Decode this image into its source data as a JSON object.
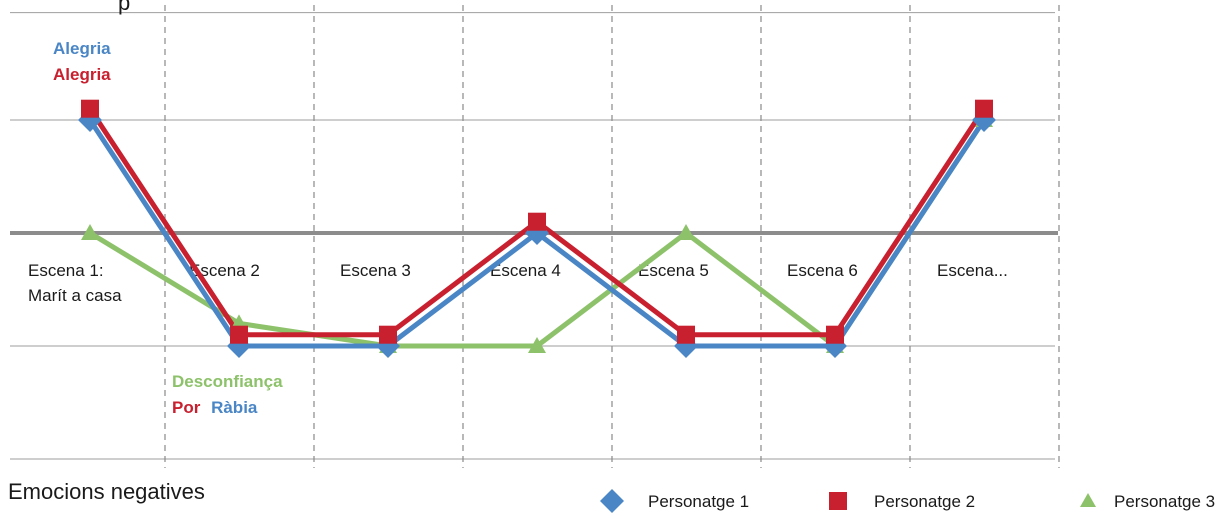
{
  "chart_data": {
    "type": "line",
    "title": "",
    "top_label_partial": "p",
    "bottom_label": "Emocions negatives",
    "scene_labels": [
      [
        "Escena 1:",
        "Marít  a casa"
      ],
      [
        "Escena 2"
      ],
      [
        "Escena 3"
      ],
      [
        "Escena 4"
      ],
      [
        "Escena 5"
      ],
      [
        "Escena 6"
      ],
      [
        "Escena..."
      ]
    ],
    "x": [
      1,
      2,
      3,
      4,
      5,
      6,
      7
    ],
    "ylim": [
      -2,
      2
    ],
    "series": [
      {
        "name": "Personatge 1",
        "color": "#4a86c5",
        "marker": "diamond",
        "values": [
          1,
          -1,
          -1,
          0,
          -1,
          -1,
          1
        ]
      },
      {
        "name": "Personatge 2",
        "color": "#c8202f",
        "marker": "square",
        "values": [
          1.1,
          -0.9,
          -0.9,
          0.1,
          -0.9,
          -0.9,
          1.1
        ]
      },
      {
        "name": "Personatge 3",
        "color": "#8dc26b",
        "marker": "triangle",
        "values": [
          0,
          -0.8,
          -1,
          -1,
          0,
          -1,
          1
        ]
      }
    ],
    "annotations": {
      "top": [
        {
          "text": "Alegria",
          "color": "#4a86c5"
        },
        {
          "text": "Alegria",
          "color": "#c8202f"
        }
      ],
      "bottom_line1": {
        "text": "Desconfiança",
        "color": "#8dc26b"
      },
      "bottom_line2": [
        {
          "text": "Por",
          "color": "#c8202f"
        },
        {
          "text": "Ràbia",
          "color": "#4a86c5"
        }
      ]
    },
    "legend_placement": "bottom-right",
    "grid": true
  }
}
